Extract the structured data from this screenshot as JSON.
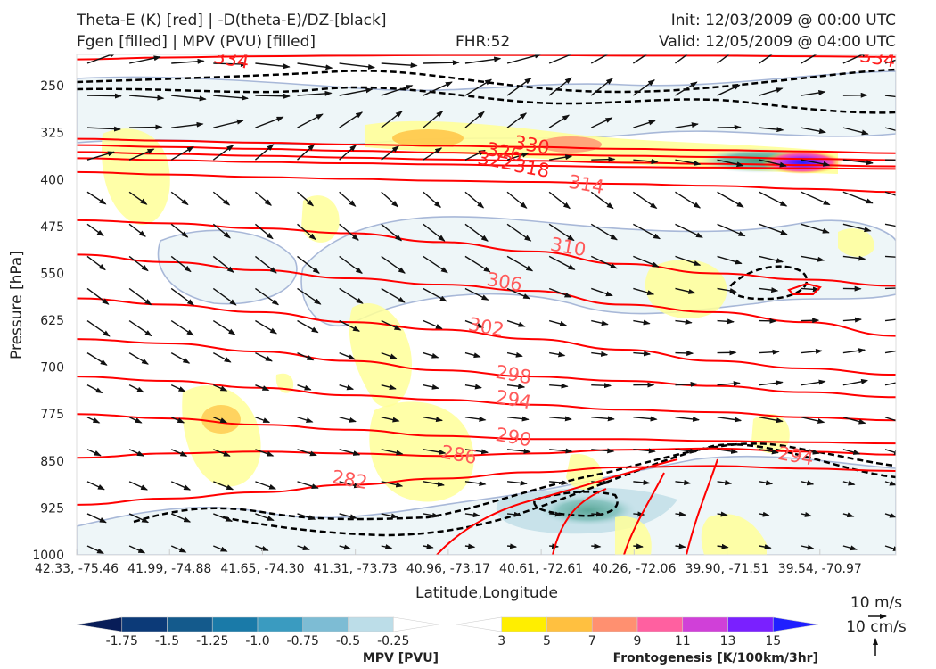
{
  "header": {
    "title_left_1": "Theta-E (K) [red] | -D(theta-E)/DZ-[black]",
    "title_left_2": "Fgen [filled] | MPV (PVU) [filled]",
    "title_center": "FHR:52",
    "title_right_1": "Init: 12/03/2009 @ 00:00 UTC",
    "title_right_2": "Valid: 12/05/2009 @ 04:00 UTC"
  },
  "chart_data": {
    "type": "cross-section",
    "xlabel": "Latitude,Longitude",
    "ylabel": "Pressure [hPa]",
    "ylim": [
      1000,
      200
    ],
    "y_ticks": [
      "250",
      "325",
      "400",
      "475",
      "550",
      "625",
      "700",
      "775",
      "850",
      "925",
      "1000"
    ],
    "x_ticks": [
      "42.33, -75.46",
      "41.99, -74.88",
      "41.65, -74.30",
      "41.31, -73.73",
      "40.96, -73.17",
      "40.61, -72.61",
      "40.26, -72.06",
      "39.90, -71.51",
      "39.54, -70.97"
    ],
    "theta_e_contours": [
      {
        "label": "334",
        "y": [
          208,
          205,
          203,
          202,
          201,
          201,
          202,
          202,
          203,
          204
        ]
      },
      {
        "label": "330",
        "y": [
          335,
          338,
          341,
          344,
          346,
          348,
          351,
          353,
          355,
          358
        ]
      },
      {
        "label": "326",
        "y": [
          345,
          348,
          351,
          354,
          357,
          360,
          362,
          364,
          367,
          369
        ]
      },
      {
        "label": "322",
        "y": [
          356,
          359,
          362,
          365,
          368,
          370,
          373,
          375,
          377,
          379
        ]
      },
      {
        "label": "318",
        "y": [
          366,
          369,
          372,
          374,
          376,
          378,
          380,
          381,
          382,
          383
        ]
      },
      {
        "label": "314",
        "y": [
          388,
          392,
          396,
          399,
          402,
          404,
          407,
          410,
          415,
          420
        ]
      },
      {
        "label": "310",
        "y": [
          465,
          470,
          478,
          486,
          500,
          515,
          535,
          550,
          560,
          570
        ]
      },
      {
        "label": "306",
        "y": [
          520,
          532,
          545,
          558,
          568,
          578,
          600,
          612,
          628,
          650
        ]
      },
      {
        "label": "302",
        "y": [
          590,
          600,
          612,
          628,
          640,
          655,
          672,
          690,
          702,
          712
        ]
      },
      {
        "label": "298",
        "y": [
          655,
          662,
          675,
          690,
          705,
          715,
          722,
          730,
          740,
          748
        ]
      },
      {
        "label": "294",
        "y": [
          715,
          722,
          733,
          745,
          752,
          760,
          768,
          772,
          780,
          785
        ]
      },
      {
        "label": "290",
        "y": [
          775,
          782,
          792,
          800,
          810,
          815,
          815,
          818,
          820,
          822
        ]
      },
      {
        "label": "286",
        "y": [
          845,
          838,
          835,
          838,
          842,
          838,
          832,
          830,
          835,
          840
        ]
      },
      {
        "label": "282",
        "y": [
          920,
          910,
          900,
          888,
          878,
          868,
          860,
          858,
          862,
          866
        ]
      }
    ],
    "contour_labels": [
      {
        "label": "334",
        "x": 1.7,
        "p": 208
      },
      {
        "label": "334",
        "x": 8.8,
        "p": 206
      },
      {
        "label": "330",
        "x": 5.0,
        "p": 345
      },
      {
        "label": "326",
        "x": 4.7,
        "p": 356
      },
      {
        "label": "322",
        "x": 4.6,
        "p": 370
      },
      {
        "label": "318",
        "x": 5.0,
        "p": 382
      },
      {
        "label": "314",
        "x": 5.6,
        "p": 408
      },
      {
        "label": "310",
        "x": 5.4,
        "p": 508
      },
      {
        "label": "306",
        "x": 4.7,
        "p": 564
      },
      {
        "label": "302",
        "x": 4.5,
        "p": 636
      },
      {
        "label": "298",
        "x": 4.8,
        "p": 712
      },
      {
        "label": "294",
        "x": 4.8,
        "p": 752
      },
      {
        "label": "290",
        "x": 4.8,
        "p": 812
      },
      {
        "label": "286",
        "x": 4.2,
        "p": 840
      },
      {
        "label": "282",
        "x": 3.0,
        "p": 880
      },
      {
        "label": "294",
        "x": 7.9,
        "p": 842
      }
    ],
    "mpv_colorbar": {
      "label": "MPV [PVU]",
      "ticks": [
        "-1.75",
        "-1.5",
        "-1.25",
        "-1.0",
        "-0.75",
        "-0.5",
        "-0.25"
      ],
      "colors": [
        "#081d58",
        "#0c3a78",
        "#145a8c",
        "#1a7aa8",
        "#3a9bc0",
        "#7dbcd4",
        "#bcdde8",
        "#ffffff"
      ]
    },
    "fgen_colorbar": {
      "label": "Frontogenesis [K/100km/3hr]",
      "ticks": [
        "3",
        "5",
        "7",
        "9",
        "11",
        "13",
        "15"
      ],
      "colors": [
        "#ffffff",
        "#ffee00",
        "#ffc040",
        "#ff9070",
        "#ff60a0",
        "#d040d8",
        "#7a20ff",
        "#2020ff"
      ]
    },
    "vector_keys": {
      "horizontal": "10 m/s",
      "vertical": "10 cm/s"
    }
  }
}
